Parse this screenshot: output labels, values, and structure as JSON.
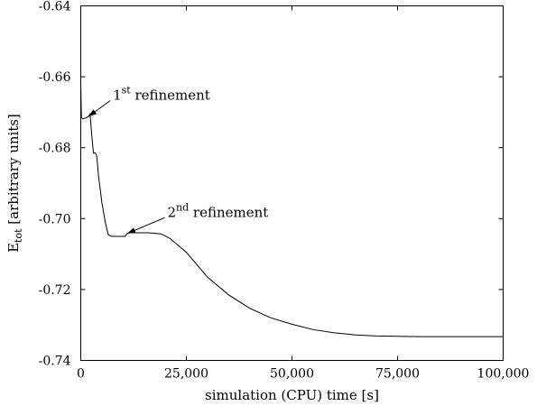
{
  "chart_data": {
    "type": "line",
    "xlabel": "simulation (CPU) time [s]",
    "ylabel": "E",
    "ylabel_subscript": "tot",
    "ylabel_suffix": " [arbitrary units]",
    "xlim": [
      0,
      100000
    ],
    "ylim": [
      -0.74,
      -0.64
    ],
    "xticks": [
      0,
      25000,
      50000,
      75000,
      100000
    ],
    "xtick_labels": [
      "0",
      "25,000",
      "50,000",
      "75,000",
      "100,000"
    ],
    "yticks": [
      -0.64,
      -0.66,
      -0.68,
      -0.7,
      -0.72,
      -0.74
    ],
    "ytick_labels": [
      "-0.64",
      "-0.66",
      "-0.68",
      "-0.70",
      "-0.72",
      "-0.74"
    ],
    "grid": false,
    "series": [
      {
        "x": [
          0,
          150,
          400,
          700,
          1200,
          1800,
          2200,
          2600,
          3000,
          3500,
          3800,
          4200,
          5000,
          5800,
          6500,
          7200,
          7800,
          8500,
          9500,
          10500,
          11000,
          11500,
          13000,
          16000,
          19000,
          21000,
          25000,
          30000,
          35000,
          40000,
          45000,
          50000,
          55000,
          60000,
          65000,
          70000,
          75000,
          80000,
          85000,
          90000,
          95000,
          100000
        ],
        "y": [
          -0.662,
          -0.6715,
          -0.6718,
          -0.6718,
          -0.6716,
          -0.6712,
          -0.6705,
          -0.6765,
          -0.6815,
          -0.6815,
          -0.6825,
          -0.688,
          -0.6955,
          -0.701,
          -0.7045,
          -0.705,
          -0.705,
          -0.705,
          -0.705,
          -0.705,
          -0.7042,
          -0.704,
          -0.704,
          -0.704,
          -0.7043,
          -0.7055,
          -0.7095,
          -0.7165,
          -0.7215,
          -0.7253,
          -0.728,
          -0.7298,
          -0.7313,
          -0.7322,
          -0.7328,
          -0.7331,
          -0.7332,
          -0.7333,
          -0.7333,
          -0.7333,
          -0.7333,
          -0.7333
        ]
      }
    ],
    "annotations": [
      {
        "base": "1",
        "sup": "st",
        "text": " refinement",
        "point": [
          1800,
          -0.6712
        ],
        "label_at": [
          7600,
          -0.6665
        ]
      },
      {
        "base": "2",
        "sup": "nd",
        "text": " refinement",
        "point": [
          11000,
          -0.7042
        ],
        "label_at": [
          20500,
          -0.6995
        ]
      }
    ]
  }
}
